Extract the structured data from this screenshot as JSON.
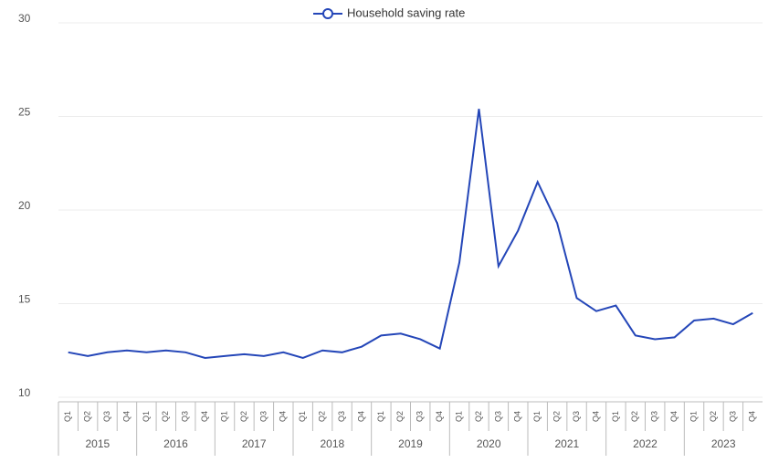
{
  "chart_data": {
    "type": "line",
    "legend_position": "top",
    "grid": true,
    "categories": [
      "Q1",
      "Q2",
      "Q3",
      "Q4",
      "Q1",
      "Q2",
      "Q3",
      "Q4",
      "Q1",
      "Q2",
      "Q3",
      "Q4",
      "Q1",
      "Q2",
      "Q3",
      "Q4",
      "Q1",
      "Q2",
      "Q3",
      "Q4",
      "Q1",
      "Q2",
      "Q3",
      "Q4",
      "Q1",
      "Q2",
      "Q3",
      "Q4",
      "Q1",
      "Q2",
      "Q3",
      "Q4",
      "Q1",
      "Q2",
      "Q3",
      "Q4"
    ],
    "year_labels": [
      "2015",
      "2016",
      "2017",
      "2018",
      "2019",
      "2020",
      "2021",
      "2022",
      "2023"
    ],
    "series": [
      {
        "name": "Household saving rate",
        "color": "#2446b8",
        "values": [
          12.4,
          12.2,
          12.4,
          12.5,
          12.4,
          12.5,
          12.4,
          12.1,
          12.2,
          12.3,
          12.2,
          12.4,
          12.1,
          12.5,
          12.4,
          12.7,
          13.3,
          13.4,
          13.1,
          12.6,
          17.2,
          25.4,
          17.0,
          18.9,
          21.5,
          19.3,
          15.3,
          14.6,
          14.9,
          13.3,
          13.1,
          13.2,
          14.1,
          14.2,
          13.9,
          14.5
        ]
      }
    ],
    "ylim": [
      10,
      30
    ],
    "yticks": [
      10,
      15,
      20,
      25,
      30
    ]
  }
}
